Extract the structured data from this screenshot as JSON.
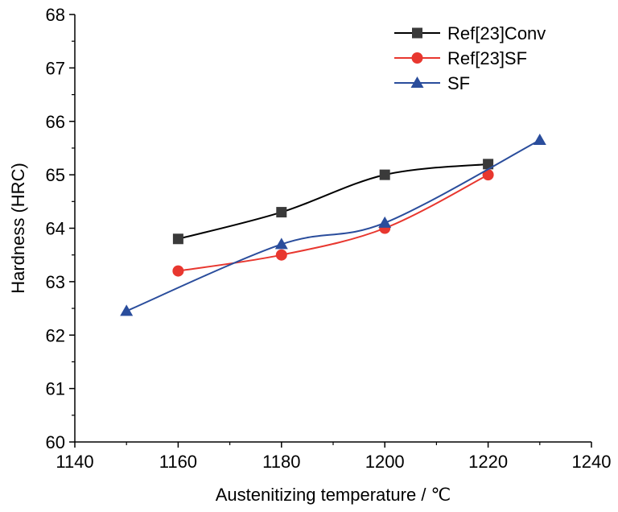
{
  "chart_data": {
    "type": "line",
    "xlabel": "Austenitizing temperature / ℃",
    "ylabel": "Hardness (HRC)",
    "xlim": [
      1140,
      1240
    ],
    "ylim": [
      60,
      68
    ],
    "xticks": [
      "1140",
      "1160",
      "1180",
      "1200",
      "1220",
      "1240"
    ],
    "yticks": [
      "60",
      "61",
      "62",
      "63",
      "64",
      "65",
      "66",
      "67",
      "68"
    ],
    "grid": false,
    "legend_position": "top-right",
    "series": [
      {
        "name": "Ref[23]Conv",
        "color": "#000000",
        "marker": "square",
        "marker_color": "#3a3a3a",
        "x": [
          1160,
          1180,
          1200,
          1220
        ],
        "y": [
          63.8,
          64.3,
          65.0,
          65.2
        ]
      },
      {
        "name": "Ref[23]SF",
        "color": "#e8372f",
        "marker": "circle",
        "marker_color": "#e8372f",
        "x": [
          1160,
          1180,
          1200,
          1220
        ],
        "y": [
          63.2,
          63.5,
          64.0,
          65.0
        ]
      },
      {
        "name": "SF",
        "color": "#2a4d9c",
        "marker": "triangle",
        "marker_color": "#2a4d9c",
        "x": [
          1150,
          1180,
          1200,
          1230
        ],
        "y": [
          62.45,
          63.7,
          64.1,
          65.65
        ]
      }
    ]
  }
}
